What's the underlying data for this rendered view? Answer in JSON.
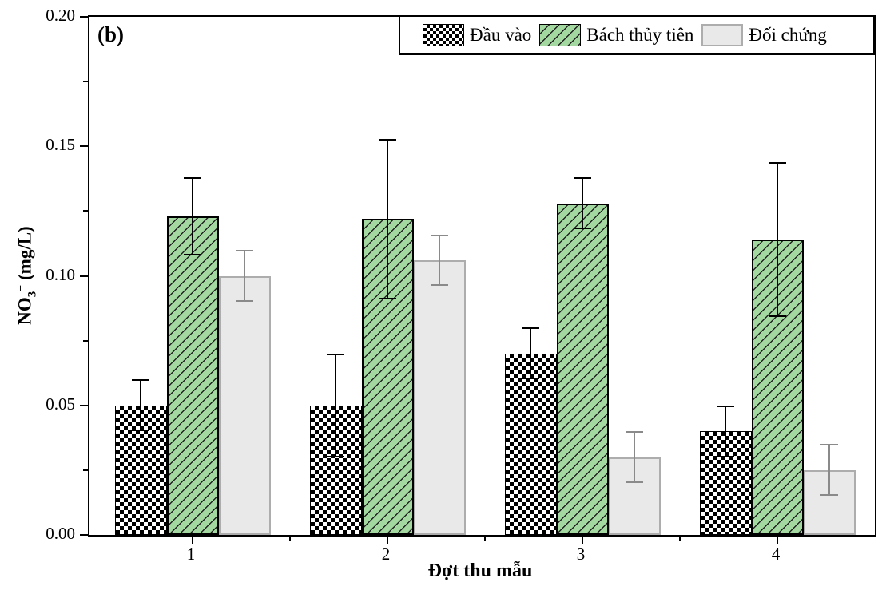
{
  "annotation": "(b)",
  "axes": {
    "y_label": {
      "base": "NO",
      "sub": "3",
      "sup": "−",
      "rest": " (mg/L)"
    },
    "x_label": "Đợt thu mẫu",
    "y_tick_labels": [
      "0.00",
      "0.05",
      "0.10",
      "0.15",
      "0.20"
    ]
  },
  "legend": {
    "items": [
      {
        "label": "Đầu vào",
        "swatch": "checker"
      },
      {
        "label": "Bách thủy tiên",
        "swatch": "green-hatch"
      },
      {
        "label": "Đối chứng",
        "swatch": "gray"
      }
    ]
  },
  "colors": {
    "green_fill": "#A3D9A1",
    "hatch_line": "#222222",
    "gray_fill": "#E9E9E9",
    "gray_border": "#ADADAD",
    "gray_error": "#8A8A8A",
    "black": "#000000"
  },
  "chart_data": {
    "type": "bar",
    "title": "",
    "xlabel": "Đợt thu mẫu",
    "ylabel": "NO3- (mg/L)",
    "categories": [
      "1",
      "2",
      "3",
      "4"
    ],
    "ylim": [
      0,
      0.2
    ],
    "y_major_ticks": [
      0,
      0.05,
      0.1,
      0.15,
      0.2
    ],
    "y_minor_ticks": [
      0.025,
      0.075,
      0.125,
      0.175
    ],
    "grid": false,
    "legend_position": "top-right-inside",
    "series": [
      {
        "name": "Đầu vào",
        "slug": "dau-vao",
        "style": "checker",
        "values": [
          0.05,
          0.05,
          0.07,
          0.04
        ],
        "error_up": [
          0.01,
          0.02,
          0.01,
          0.01
        ],
        "error_down": [
          0.01,
          0.02,
          0.01,
          0.01
        ]
      },
      {
        "name": "Bách thủy tiên",
        "slug": "bach-thuy-tien",
        "style": "green-hatch",
        "values": [
          0.123,
          0.122,
          0.128,
          0.114
        ],
        "error_up": [
          0.015,
          0.031,
          0.01,
          0.03
        ],
        "error_down": [
          0.015,
          0.031,
          0.01,
          0.03
        ]
      },
      {
        "name": "Đối chứng",
        "slug": "doi-chung",
        "style": "gray",
        "values": [
          0.1,
          0.106,
          0.03,
          0.025
        ],
        "error_up": [
          0.01,
          0.01,
          0.01,
          0.01
        ],
        "error_down": [
          0.01,
          0.01,
          0.01,
          0.01
        ]
      }
    ]
  }
}
